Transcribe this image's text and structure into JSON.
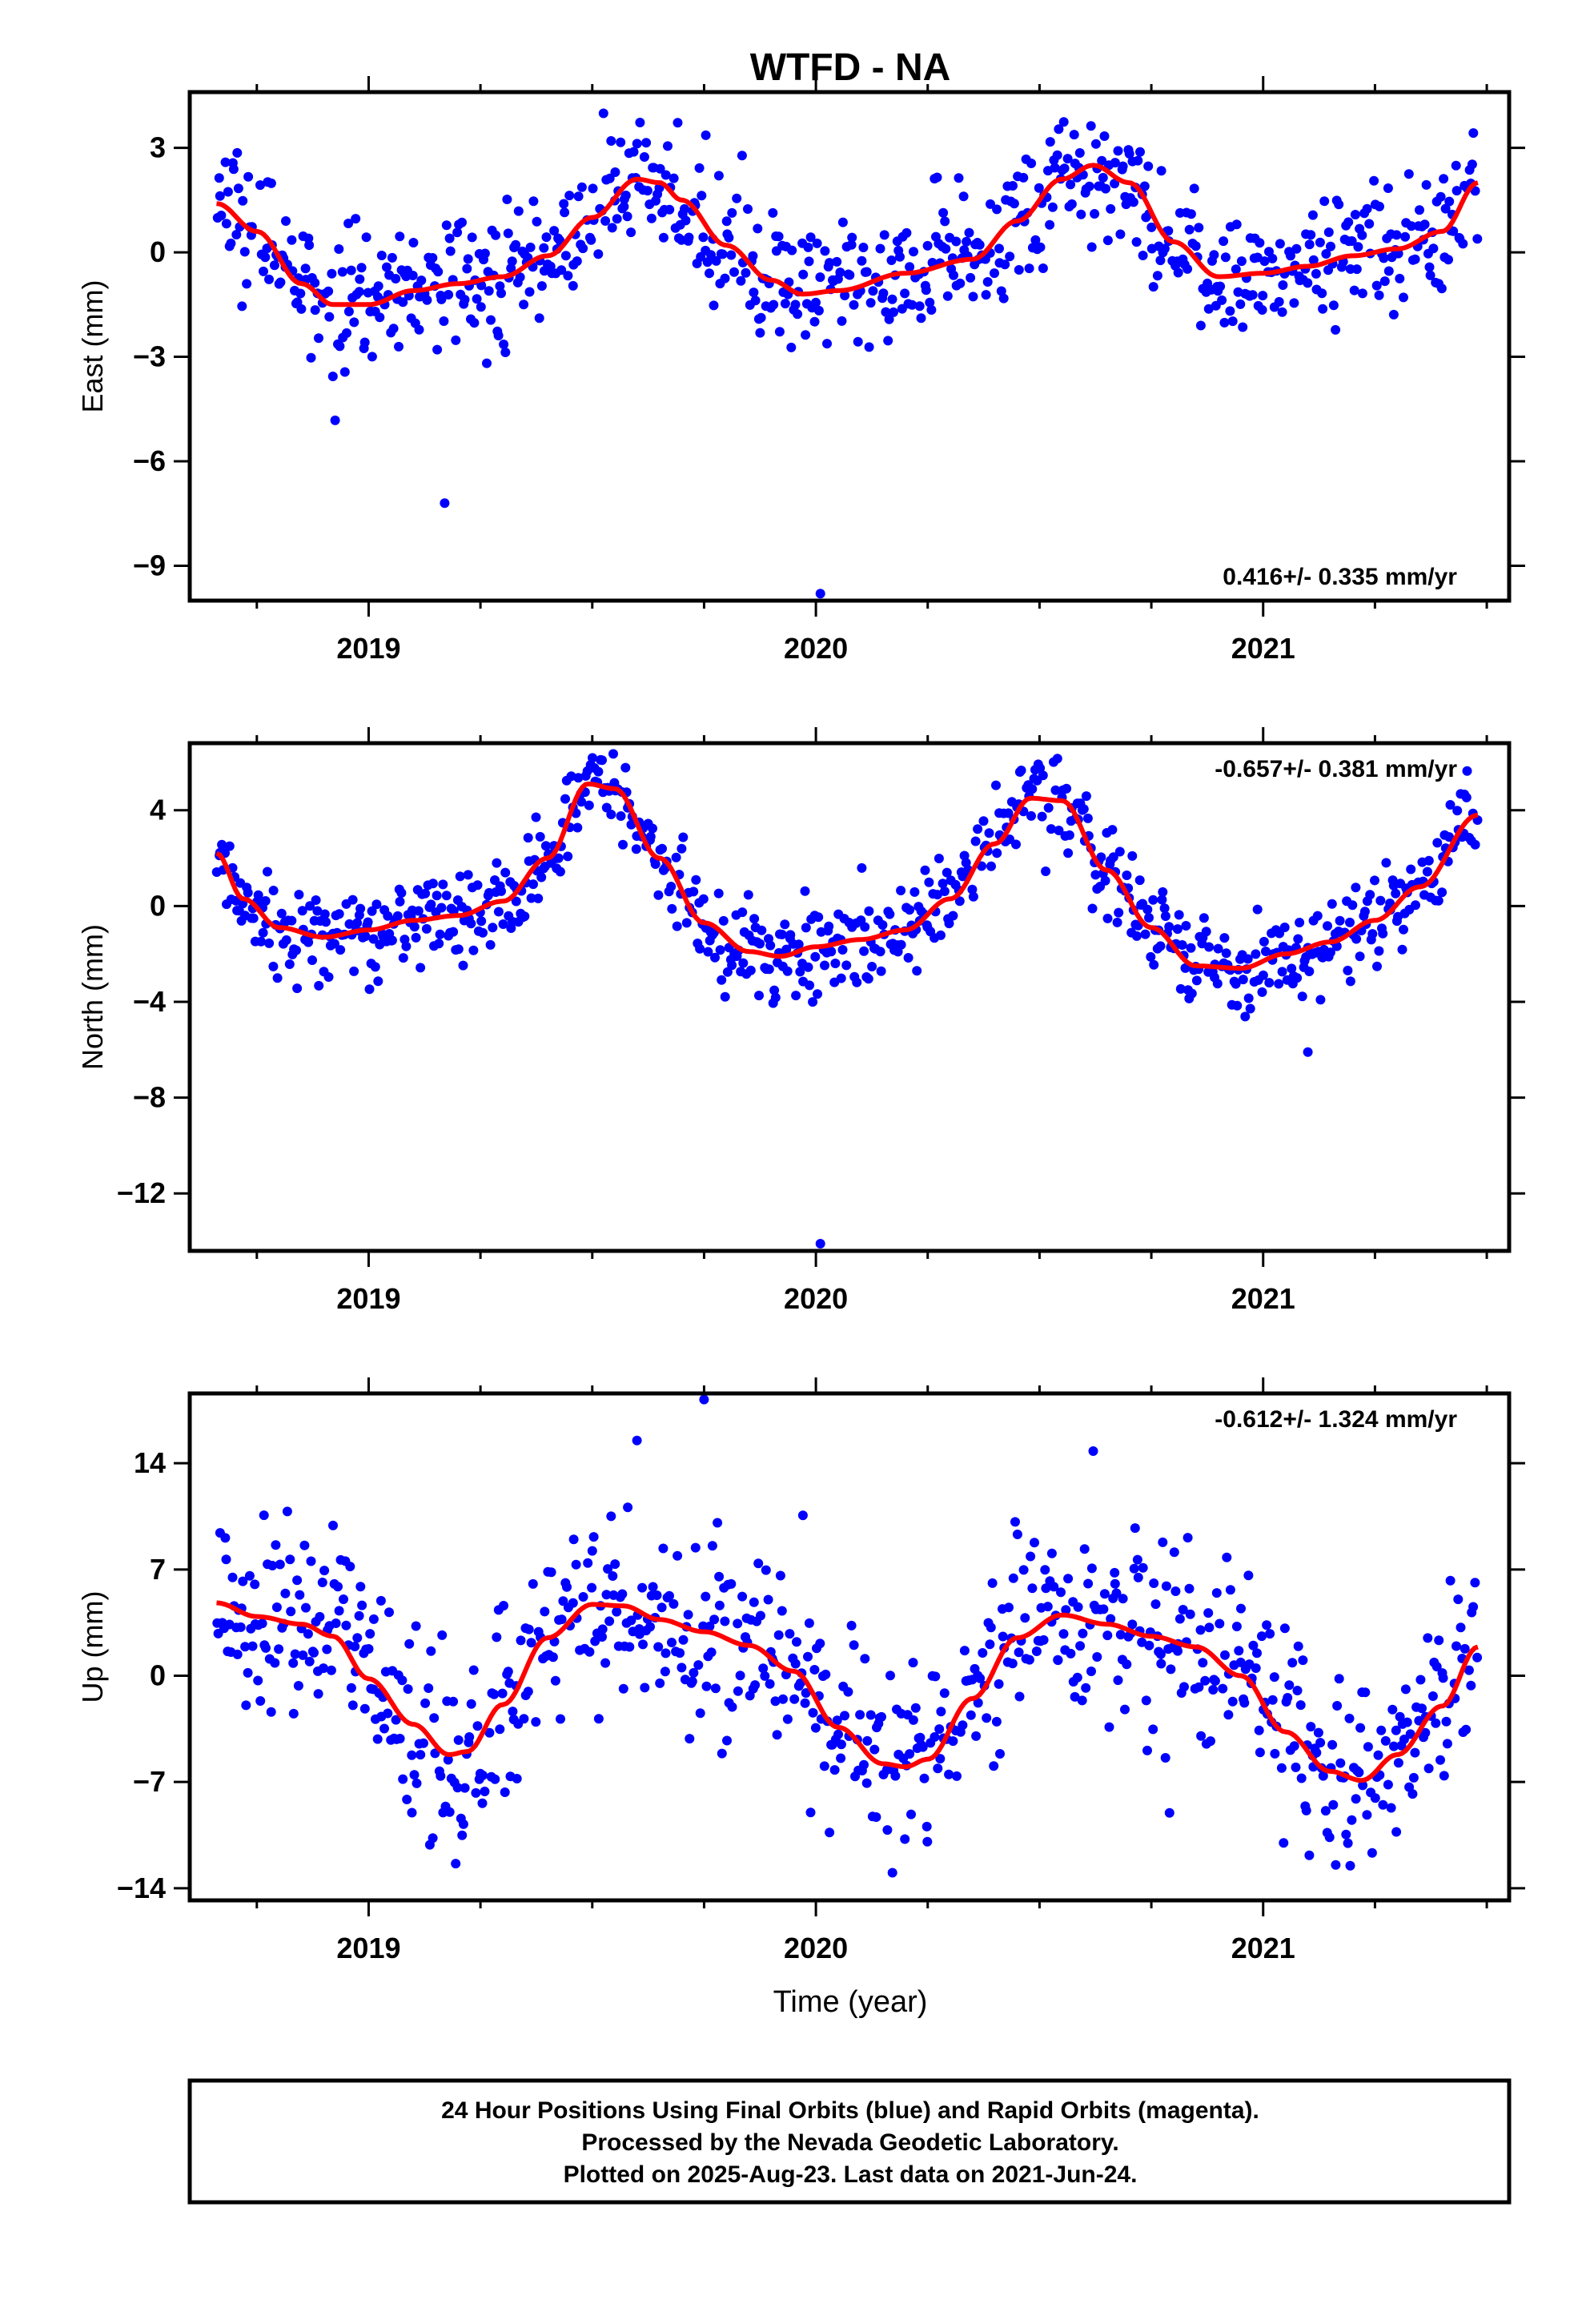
{
  "figure": {
    "title": "WTFD - NA",
    "xlabel": "Time (year)",
    "footer": [
      "24 Hour Positions Using Final Orbits (blue) and Rapid Orbits (magenta).",
      "Processed by the Nevada Geodetic Laboratory.",
      "Plotted on 2025-Aug-23. Last data on 2021-Jun-24."
    ]
  },
  "colors": {
    "points": "#0000ff",
    "model": "#ff0000",
    "frame": "#000000"
  },
  "chart_data": [
    {
      "type": "scatter",
      "name": "east",
      "ylabel": "East (mm)",
      "rate_label": "0.416+/- 0.335 mm/yr",
      "rate_position": "bottom-right",
      "xlim": [
        2018.6,
        2021.55
      ],
      "ylim": [
        -10.0,
        4.6
      ],
      "yticks": [
        3,
        0,
        -3,
        -6,
        -9
      ],
      "ytick_labels": [
        "3",
        "0",
        "−3",
        "−6",
        "−9"
      ],
      "xticks": [
        2019,
        2020,
        2021
      ],
      "xtick_labels": [
        "2019",
        "2020",
        "2021"
      ],
      "model": {
        "x": [
          2018.66,
          2018.75,
          2018.85,
          2018.92,
          2019.0,
          2019.1,
          2019.2,
          2019.3,
          2019.4,
          2019.5,
          2019.6,
          2019.65,
          2019.7,
          2019.8,
          2019.9,
          2019.97,
          2020.05,
          2020.2,
          2020.35,
          2020.45,
          2020.55,
          2020.62,
          2020.7,
          2020.8,
          2020.9,
          2021.0,
          2021.1,
          2021.2,
          2021.3,
          2021.4,
          2021.48
        ],
        "y": [
          1.4,
          0.6,
          -0.9,
          -1.5,
          -1.5,
          -1.1,
          -0.9,
          -0.7,
          -0.1,
          1.0,
          2.1,
          2.0,
          1.5,
          0.2,
          -0.8,
          -1.2,
          -1.1,
          -0.6,
          -0.2,
          0.9,
          2.1,
          2.5,
          2.0,
          0.3,
          -0.7,
          -0.6,
          -0.4,
          -0.1,
          0.1,
          0.6,
          2.0
        ]
      },
      "points_count": 820,
      "noise_sd": 0.95,
      "outliers": [
        {
          "x": 2019.17,
          "y": -7.2
        },
        {
          "x": 2020.01,
          "y": -9.8
        }
      ]
    },
    {
      "type": "scatter",
      "name": "north",
      "ylabel": "North (mm)",
      "rate_label": "-0.657+/- 0.381 mm/yr",
      "rate_position": "top-right",
      "xlim": [
        2018.6,
        2021.55
      ],
      "ylim": [
        -14.4,
        6.8
      ],
      "yticks": [
        4,
        0,
        -4,
        -8,
        -12
      ],
      "ytick_labels": [
        "4",
        "0",
        "−4",
        "−8",
        "−12"
      ],
      "xticks": [
        2019,
        2020,
        2021
      ],
      "xtick_labels": [
        "2019",
        "2020",
        "2021"
      ],
      "model": {
        "x": [
          2018.66,
          2018.72,
          2018.8,
          2018.9,
          2019.0,
          2019.1,
          2019.2,
          2019.3,
          2019.4,
          2019.49,
          2019.55,
          2019.65,
          2019.75,
          2019.85,
          2019.92,
          2020.0,
          2020.1,
          2020.2,
          2020.3,
          2020.4,
          2020.48,
          2020.55,
          2020.65,
          2020.75,
          2020.85,
          2020.95,
          2021.05,
          2021.15,
          2021.25,
          2021.35,
          2021.48
        ],
        "y": [
          2.2,
          0.3,
          -0.9,
          -1.3,
          -1.0,
          -0.6,
          -0.4,
          0.2,
          2.0,
          5.1,
          4.9,
          2.0,
          -0.7,
          -1.9,
          -2.1,
          -1.7,
          -1.4,
          -1.0,
          0.3,
          2.6,
          4.5,
          4.4,
          1.5,
          -0.9,
          -2.5,
          -2.6,
          -2.0,
          -1.5,
          -0.6,
          0.8,
          3.8
        ]
      },
      "points_count": 820,
      "noise_sd": 0.95,
      "outliers": [
        {
          "x": 2020.01,
          "y": -14.1
        },
        {
          "x": 2021.1,
          "y": -6.1
        }
      ]
    },
    {
      "type": "scatter",
      "name": "up",
      "ylabel": "Up (mm)",
      "rate_label": "-0.612+/- 1.324 mm/yr",
      "rate_position": "top-right",
      "xlim": [
        2018.6,
        2021.55
      ],
      "ylim": [
        -14.8,
        18.6
      ],
      "yticks": [
        14,
        7,
        0,
        -7,
        -14
      ],
      "ytick_labels": [
        "14",
        "7",
        "0",
        "−7",
        "−14"
      ],
      "xticks": [
        2019,
        2020,
        2021
      ],
      "xtick_labels": [
        "2019",
        "2020",
        "2021"
      ],
      "model": {
        "x": [
          2018.66,
          2018.75,
          2018.85,
          2018.92,
          2019.0,
          2019.1,
          2019.18,
          2019.22,
          2019.3,
          2019.4,
          2019.5,
          2019.57,
          2019.65,
          2019.75,
          2019.85,
          2019.95,
          2020.05,
          2020.15,
          2020.2,
          2020.25,
          2020.35,
          2020.45,
          2020.55,
          2020.65,
          2020.75,
          2020.85,
          2020.95,
          2021.05,
          2021.15,
          2021.22,
          2021.3,
          2021.4,
          2021.48
        ],
        "y": [
          4.8,
          3.9,
          3.4,
          2.6,
          -0.2,
          -3.2,
          -5.2,
          -5.0,
          -1.9,
          2.5,
          4.7,
          4.6,
          3.7,
          2.9,
          2.0,
          0.3,
          -3.4,
          -5.8,
          -6.0,
          -5.5,
          -1.5,
          2.5,
          4.0,
          3.4,
          2.6,
          1.9,
          0.0,
          -3.7,
          -6.3,
          -6.9,
          -5.2,
          -2.0,
          1.9
        ]
      },
      "points_count": 820,
      "noise_sd": 3.3,
      "outliers": [
        {
          "x": 2019.75,
          "y": 18.2
        },
        {
          "x": 2019.6,
          "y": 15.5
        },
        {
          "x": 2020.62,
          "y": 14.8
        }
      ]
    }
  ]
}
